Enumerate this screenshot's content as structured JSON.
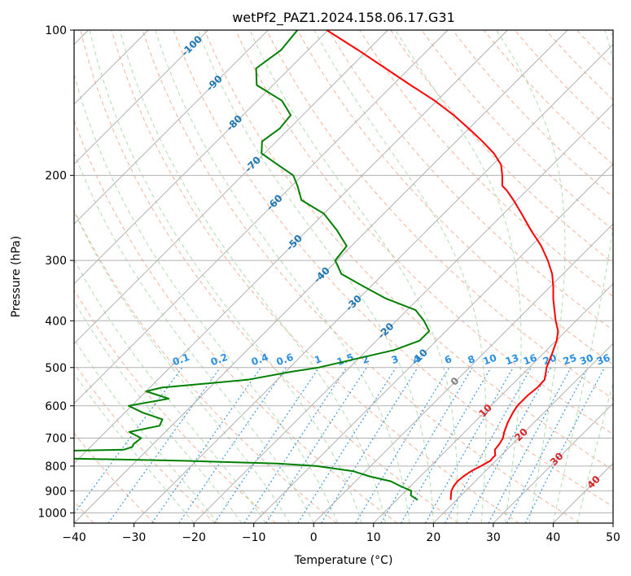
{
  "chart_data": {
    "type": "line",
    "title": "wetPf2_PAZ1.2024.158.06.17.G31",
    "xlabel": "Temperature (°C)",
    "ylabel": "Pressure (hPa)",
    "xlim": [
      -40,
      50
    ],
    "ylim": [
      1050,
      100
    ],
    "y_scale": "log",
    "grid": true,
    "x_ticks": [
      -40,
      -30,
      -20,
      -10,
      0,
      10,
      20,
      30,
      40,
      50
    ],
    "x_tick_labels": [
      "−40",
      "−30",
      "−20",
      "−10",
      "0",
      "10",
      "20",
      "30",
      "40",
      "50"
    ],
    "y_ticks": [
      1000,
      900,
      800,
      700,
      600,
      500,
      400,
      300,
      200,
      100
    ],
    "y_tick_labels": [
      "1000",
      "900",
      "800",
      "700",
      "600",
      "500",
      "400",
      "300",
      "200",
      "100"
    ],
    "colors": {
      "temperature": "#ff0000",
      "dewpoint": "#008000",
      "isotherm": "#b0b0b0",
      "dry_adiabat": "#f4a582",
      "moist_adiabat": "#a6d9a6",
      "mixing_ratio": "#2a8fe0",
      "isotherm_label_cold": "#1f77b4",
      "isotherm_label_warm": "#d62728",
      "isotherm_label_zero": "#808080"
    },
    "isotherm_labels": [
      {
        "t": -100,
        "p": 108,
        "text": "-100"
      },
      {
        "t": -90,
        "p": 129,
        "text": "-90"
      },
      {
        "t": -80,
        "p": 156,
        "text": "-80"
      },
      {
        "t": -70,
        "p": 190,
        "text": "-70"
      },
      {
        "t": -60,
        "p": 228,
        "text": "-60"
      },
      {
        "t": -50,
        "p": 276,
        "text": "-50"
      },
      {
        "t": -40,
        "p": 322,
        "text": "-40"
      },
      {
        "t": -30,
        "p": 368,
        "text": "-30"
      },
      {
        "t": -20,
        "p": 420,
        "text": "-20"
      },
      {
        "t": -10,
        "p": 476,
        "text": "-10"
      },
      {
        "t": 0,
        "p": 535,
        "text": "0"
      },
      {
        "t": 10,
        "p": 615,
        "text": "10"
      },
      {
        "t": 20,
        "p": 690,
        "text": "20"
      },
      {
        "t": 30,
        "p": 775,
        "text": "30"
      },
      {
        "t": 40,
        "p": 865,
        "text": "40"
      }
    ],
    "mixing_ratios": [
      0.1,
      0.2,
      0.4,
      0.6,
      1,
      1.5,
      2,
      3,
      4,
      6,
      8,
      10,
      13,
      16,
      20,
      25,
      30,
      36
    ],
    "mixing_ratio_labels": [
      "0.1",
      "0.2",
      "0.4",
      "0.6",
      "1",
      "1.5",
      "2",
      "3",
      "4",
      "6",
      "8",
      "10",
      "13",
      "16",
      "20",
      "25",
      "30",
      "36"
    ],
    "series": [
      {
        "role": "temperature",
        "p": [
          940,
          920,
          900,
          880,
          860,
          840,
          820,
          810,
          800,
          790,
          780,
          770,
          760,
          750,
          740,
          720,
          700,
          680,
          650,
          620,
          600,
          570,
          550,
          530,
          510,
          500,
          470,
          440,
          420,
          400,
          380,
          360,
          340,
          320,
          300,
          280,
          260,
          240,
          225,
          215,
          210,
          200,
          190,
          180,
          170,
          160,
          150,
          140,
          130,
          120,
          110,
          100
        ],
        "t": [
          19,
          18.3,
          17.6,
          17.2,
          17.0,
          17.2,
          17.6,
          18.0,
          18.4,
          18.7,
          19.1,
          19.0,
          19.0,
          18.5,
          18.0,
          17.8,
          17.4,
          16.6,
          15.6,
          14.8,
          14.4,
          14.4,
          14.7,
          14.6,
          13.5,
          12.9,
          11.6,
          10.1,
          8.7,
          6.6,
          4.6,
          2.5,
          0.5,
          -1.8,
          -4.8,
          -8.3,
          -12.6,
          -17.0,
          -20.6,
          -23.3,
          -24.9,
          -26.6,
          -28.6,
          -31.7,
          -35.6,
          -40.0,
          -44.8,
          -50.4,
          -57.0,
          -64.0,
          -71.6,
          -80.2
        ]
      },
      {
        "role": "dewpoint",
        "p": [
          940,
          920,
          900,
          880,
          860,
          840,
          820,
          800,
          790,
          780,
          770,
          760,
          755,
          750,
          740,
          730,
          720,
          700,
          680,
          660,
          640,
          620,
          600,
          580,
          560,
          550,
          530,
          510,
          500,
          480,
          460,
          440,
          420,
          400,
          380,
          360,
          340,
          320,
          300,
          280,
          260,
          240,
          225,
          210,
          200,
          190,
          180,
          170,
          160,
          150,
          140,
          130,
          120,
          110,
          100
        ],
        "t": [
          13.5,
          11.6,
          10.9,
          8.3,
          5.9,
          1.5,
          -2.0,
          -9.0,
          -16.0,
          -32.0,
          -55.0,
          -68.0,
          -73.0,
          -72.0,
          -44.0,
          -43.0,
          -43.3,
          -43.0,
          -46.0,
          -42.0,
          -42.6,
          -47.0,
          -50.5,
          -45.0,
          -50.0,
          -48.0,
          -35.0,
          -29.0,
          -25.2,
          -20.5,
          -15.5,
          -12.8,
          -12.8,
          -15.4,
          -18.6,
          -25.4,
          -31.1,
          -37.0,
          -40.3,
          -40.8,
          -45.0,
          -50.0,
          -56.0,
          -59.1,
          -61.5,
          -65.9,
          -70.5,
          -72.4,
          -71.6,
          -72.0,
          -75.9,
          -82.7,
          -85.6,
          -84.5,
          -85.1
        ]
      }
    ]
  }
}
